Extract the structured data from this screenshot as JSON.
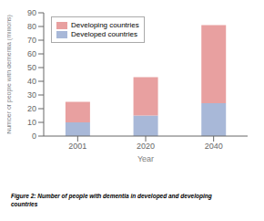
{
  "chart_data": {
    "type": "bar",
    "stacked": true,
    "categories": [
      "2001",
      "2020",
      "2040"
    ],
    "series": [
      {
        "name": "Developed countries",
        "color": "#a8b8d8",
        "values": [
          10,
          15,
          24
        ]
      },
      {
        "name": "Developing countries",
        "color": "#e8a0a0",
        "values": [
          15,
          28,
          57
        ]
      }
    ],
    "xlabel": "Year",
    "ylabel": "Number of people with dementia (millions)",
    "ylim": [
      0,
      90
    ],
    "yticks": [
      0,
      10,
      20,
      30,
      40,
      50,
      60,
      70,
      80,
      90
    ],
    "legend": "upper left",
    "annotations": [
      "Figure 2: Number of people with dementia in developed and developing",
      "countries"
    ]
  }
}
